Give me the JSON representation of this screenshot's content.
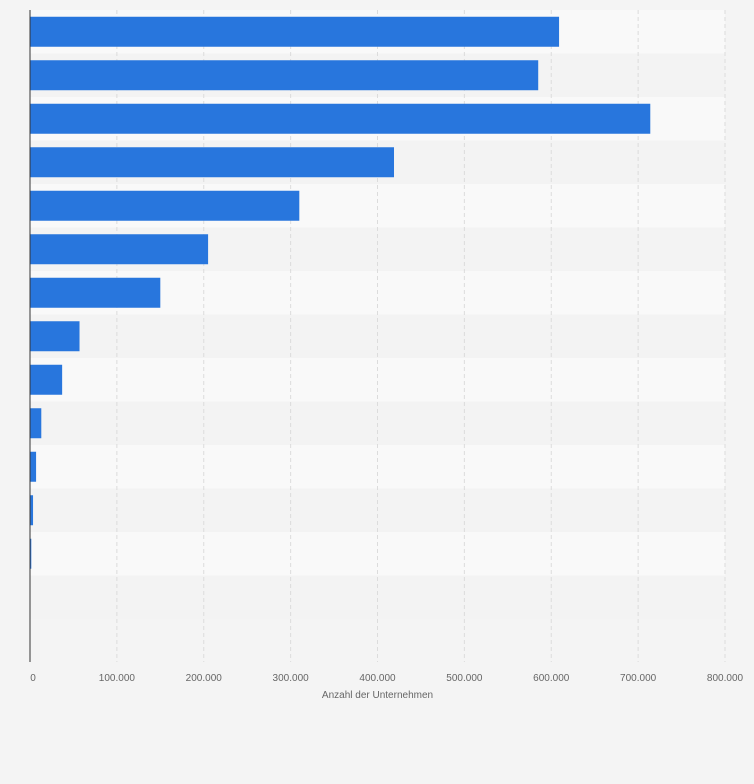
{
  "chart_data": {
    "type": "bar",
    "orientation": "horizontal",
    "title": "",
    "xlabel": "Anzahl der Unternehmen",
    "ylabel": "",
    "xlim": [
      0,
      800000
    ],
    "x_ticks": [
      0,
      100000,
      200000,
      300000,
      400000,
      500000,
      600000,
      700000,
      800000
    ],
    "x_tick_labels": [
      "0",
      "100.000",
      "200.000",
      "300.000",
      "400.000",
      "500.000",
      "600.000",
      "700.000",
      "800.000"
    ],
    "grid": true,
    "category_count": 14,
    "values": [
      609000,
      585000,
      714000,
      419000,
      310000,
      205000,
      150000,
      57000,
      37000,
      13000,
      7000,
      3500,
      1500,
      0
    ],
    "bar_color": "#2876dd"
  },
  "colors": {
    "background": "#f4f4f4",
    "band_light": "#f9f9f9",
    "band_dark": "#f3f3f3",
    "grid": "#dcdcdc",
    "axis": "#333333",
    "tick_text": "#666666"
  }
}
